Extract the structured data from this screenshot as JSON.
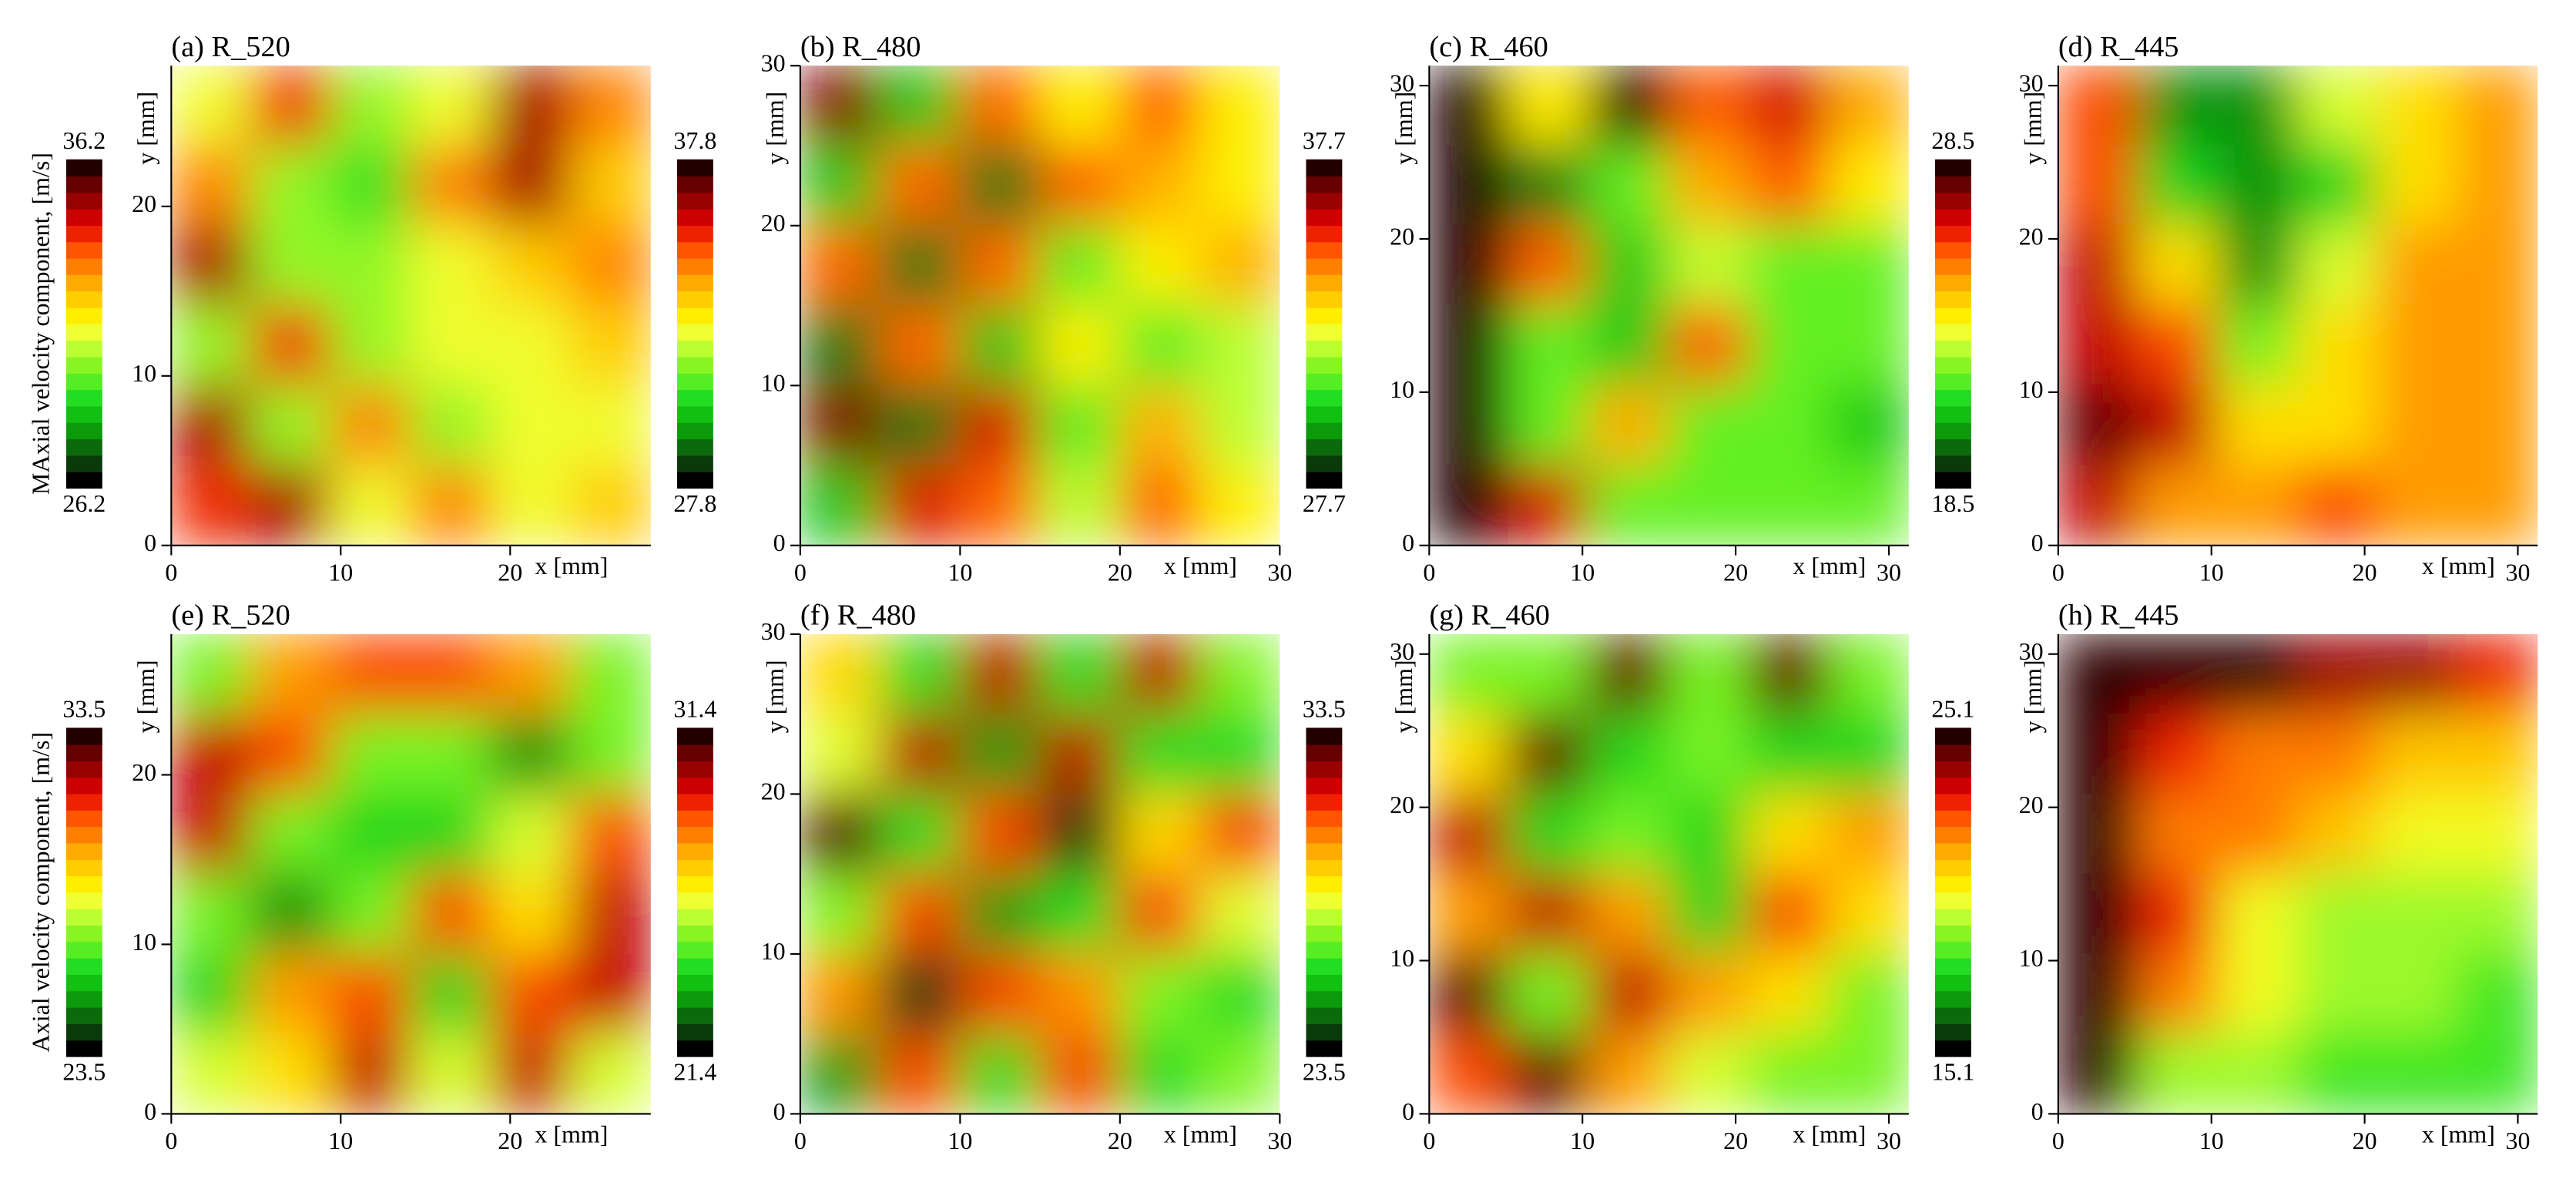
{
  "colormap": [
    "#000000",
    "#0a3a0a",
    "#0b6b0b",
    "#0a9a0a",
    "#11c011",
    "#22dd22",
    "#55ee22",
    "#88f522",
    "#bbff33",
    "#eeff33",
    "#ffee00",
    "#ffcc00",
    "#ffaa00",
    "#ff8000",
    "#ff5500",
    "#ee2200",
    "#cc0000",
    "#990000",
    "#660000",
    "#220000"
  ],
  "chart_data": [
    {
      "type": "heatmap",
      "title": "(a) R_520",
      "xlabel": "x [mm]",
      "ylabel": "y [mm]",
      "colorbar_label": "MAxial velocity component, [m/s]",
      "xlim": [
        0,
        28.3
      ],
      "ylim": [
        0,
        28.3
      ],
      "xticks": [
        0,
        10,
        20
      ],
      "yticks": [
        0,
        10,
        20
      ],
      "zlim": [
        26.2,
        36.2
      ],
      "z": [
        [
          31,
          34,
          30,
          31,
          35,
          33
        ],
        [
          33,
          30,
          29,
          33,
          35,
          32
        ],
        [
          35,
          30,
          30,
          31,
          32,
          33
        ],
        [
          30,
          34,
          30,
          31,
          31,
          32
        ],
        [
          35,
          30,
          33,
          30,
          31,
          31
        ],
        [
          34,
          35,
          31,
          33,
          31,
          32
        ]
      ]
    },
    {
      "type": "heatmap",
      "title": "(b) R_480",
      "xlabel": "x [mm]",
      "ylabel": "y [mm]",
      "xlim": [
        0,
        30
      ],
      "ylim": [
        0,
        30
      ],
      "xticks": [
        0,
        10,
        20,
        30
      ],
      "yticks": [
        0,
        10,
        20,
        30
      ],
      "zlim": [
        27.8,
        37.8
      ],
      "z": [
        [
          37,
          30,
          35,
          33,
          35,
          33
        ],
        [
          30,
          35,
          29,
          35,
          34,
          33
        ],
        [
          35,
          29,
          35,
          31,
          33,
          34
        ],
        [
          29,
          35,
          30,
          33,
          31,
          32
        ],
        [
          37,
          29,
          36,
          31,
          34,
          32
        ],
        [
          30,
          36,
          35,
          32,
          35,
          33
        ]
      ]
    },
    {
      "type": "heatmap",
      "title": "(c) R_460",
      "xlabel": "x [mm]",
      "ylabel": "y [mm]",
      "xlim": [
        0,
        31.3
      ],
      "ylim": [
        0,
        31.3
      ],
      "xticks": [
        0,
        10,
        20,
        30
      ],
      "yticks": [
        0,
        10,
        20,
        30
      ],
      "zlim": [
        27.7,
        37.7
      ],
      "z": [
        [
          38,
          33,
          38,
          35,
          36,
          34
        ],
        [
          38,
          29,
          31,
          34,
          35,
          33
        ],
        [
          38,
          35,
          30,
          32,
          31,
          31
        ],
        [
          38,
          31,
          30,
          35,
          31,
          31
        ],
        [
          38,
          31,
          34,
          31,
          31,
          30
        ],
        [
          38,
          36,
          31,
          31,
          31,
          31
        ]
      ]
    },
    {
      "type": "heatmap",
      "title": "(d) R_445",
      "xlabel": "x [mm]",
      "ylabel": "y [mm]",
      "xlim": [
        0,
        31.3
      ],
      "ylim": [
        0,
        31.3
      ],
      "xticks": [
        0,
        10,
        20,
        30
      ],
      "yticks": [
        0,
        10,
        20,
        30
      ],
      "zlim": [
        18.5,
        28.5
      ],
      "z": [
        [
          26,
          20,
          20,
          23,
          24,
          25
        ],
        [
          26,
          21,
          20,
          21,
          24,
          25
        ],
        [
          27,
          24,
          20,
          23,
          25,
          25
        ],
        [
          27,
          26,
          22,
          24,
          25,
          25
        ],
        [
          28,
          27,
          24,
          24,
          25,
          25
        ],
        [
          27,
          25,
          25,
          26,
          25,
          25
        ]
      ]
    },
    {
      "type": "heatmap",
      "title": "(e) R_520",
      "xlabel": "x [mm]",
      "ylabel": "y [mm]",
      "colorbar_label": "Axial velocity component, [m/s]",
      "xlim": [
        0,
        28.3
      ],
      "ylim": [
        0,
        28.3
      ],
      "xticks": [
        0,
        10,
        20
      ],
      "yticks": [
        0,
        10,
        20
      ],
      "zlim": [
        23.5,
        33.5
      ],
      "z": [
        [
          27,
          30,
          31,
          31,
          30,
          27
        ],
        [
          32,
          31,
          27,
          27,
          25,
          27
        ],
        [
          32,
          27,
          26,
          26,
          28,
          31
        ],
        [
          27,
          25,
          27,
          31,
          29,
          32
        ],
        [
          26,
          30,
          31,
          26,
          31,
          32
        ],
        [
          28,
          29,
          32,
          28,
          32,
          28
        ]
      ]
    },
    {
      "type": "heatmap",
      "title": "(f) R_480",
      "xlabel": "x [mm]",
      "ylabel": "y [mm]",
      "xlim": [
        0,
        30
      ],
      "ylim": [
        0,
        30
      ],
      "xticks": [
        0,
        10,
        20,
        30
      ],
      "yticks": [
        0,
        10,
        20,
        30
      ],
      "zlim": [
        21.4,
        31.4
      ],
      "z": [
        [
          27,
          24,
          30,
          24,
          30,
          25
        ],
        [
          26,
          30,
          23,
          30,
          24,
          24
        ],
        [
          31,
          24,
          29,
          22,
          27,
          29
        ],
        [
          25,
          29,
          23,
          24,
          29,
          26
        ],
        [
          28,
          22,
          29,
          28,
          25,
          24
        ],
        [
          23,
          29,
          24,
          29,
          24,
          25
        ]
      ]
    },
    {
      "type": "heatmap",
      "title": "(g) R_460",
      "xlabel": "x [mm]",
      "ylabel": "y [mm]",
      "xlim": [
        0,
        31.3
      ],
      "ylim": [
        0,
        31.3
      ],
      "xticks": [
        0,
        10,
        20,
        30
      ],
      "yticks": [
        0,
        10,
        20,
        30
      ],
      "zlim": [
        23.5,
        33.5
      ],
      "z": [
        [
          27,
          27,
          33,
          27,
          33,
          27
        ],
        [
          29,
          33,
          26,
          27,
          26,
          26
        ],
        [
          32,
          26,
          27,
          26,
          29,
          30
        ],
        [
          30,
          32,
          30,
          26,
          31,
          29
        ],
        [
          33,
          27,
          32,
          30,
          29,
          27
        ],
        [
          31,
          33,
          30,
          28,
          27,
          27
        ]
      ]
    },
    {
      "type": "heatmap",
      "title": "(h) R_445",
      "xlabel": "x [mm]",
      "ylabel": "y [mm]",
      "xlim": [
        0,
        31.3
      ],
      "ylim": [
        0,
        31.3
      ],
      "xticks": [
        0,
        10,
        20,
        30
      ],
      "yticks": [
        0,
        10,
        20,
        30
      ],
      "zlim": [
        15.1,
        25.1
      ],
      "z": [
        [
          25,
          25,
          25,
          24,
          24,
          23
        ],
        [
          25,
          23,
          22,
          22,
          21,
          21
        ],
        [
          25,
          22,
          22,
          21,
          20,
          20
        ],
        [
          25,
          23,
          20,
          19,
          19,
          19
        ],
        [
          25,
          22,
          20,
          19,
          19,
          18
        ],
        [
          25,
          19,
          19,
          18,
          18,
          18
        ]
      ]
    }
  ]
}
